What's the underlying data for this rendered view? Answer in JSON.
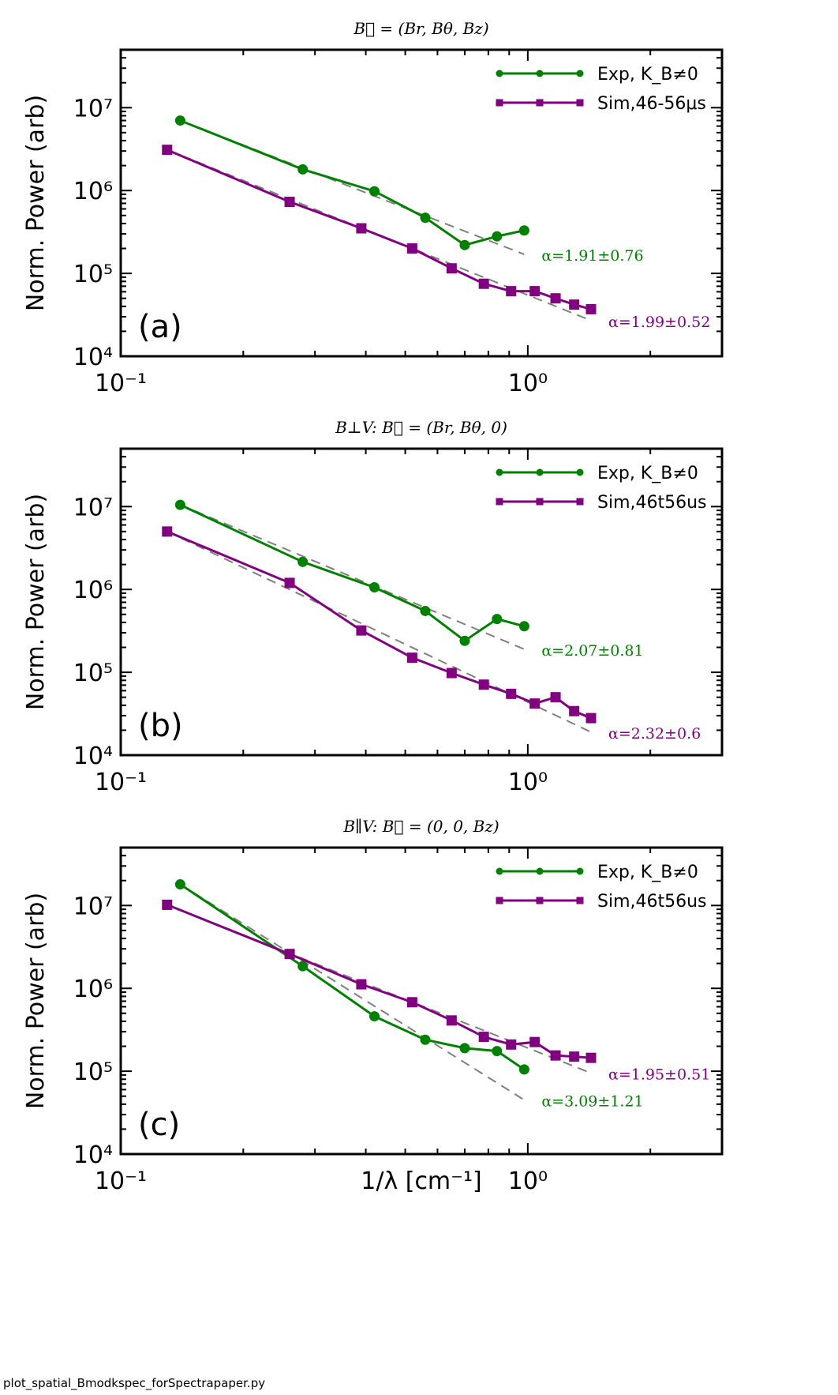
{
  "footer": "plot_spatial_Bmodkspec_forSpectrapaper.py",
  "colors": {
    "exp": "#008000",
    "sim": "#800080",
    "fit": "#808080"
  },
  "chart_data": [
    {
      "type": "line",
      "panel_label": "(a)",
      "title": "B⃗ = (Br, Bθ, Bz)",
      "xlabel": "",
      "ylabel": "Norm. Power (arb)",
      "xscale": "log",
      "yscale": "log",
      "xlim": [
        0.1,
        3.0
      ],
      "ylim": [
        10000,
        50000000
      ],
      "x_tick_labels": [
        "10⁻¹",
        "10⁰"
      ],
      "y_tick_labels": [
        "10⁴",
        "10⁵",
        "10⁶",
        "10⁷"
      ],
      "legend_position": "top-right",
      "series": [
        {
          "name": "Exp, K_B≠0",
          "color": "#008000",
          "marker": "circle",
          "x": [
            0.14,
            0.28,
            0.42,
            0.56,
            0.7,
            0.84,
            0.98
          ],
          "y": [
            7000000,
            1800000,
            980000,
            470000,
            220000,
            280000,
            330000
          ]
        },
        {
          "name": "Sim,46-56μs",
          "color": "#800080",
          "marker": "square",
          "x": [
            0.13,
            0.26,
            0.39,
            0.52,
            0.65,
            0.78,
            0.91,
            1.04,
            1.17,
            1.3,
            1.43
          ],
          "y": [
            3100000,
            730000,
            350000,
            200000,
            115000,
            75000,
            61000,
            61000,
            50000,
            42000,
            37000
          ]
        }
      ],
      "fits": [
        {
          "color": "#008000",
          "label": "α=1.91±0.76",
          "x": [
            0.14,
            0.98
          ],
          "y": [
            7000000,
            170000
          ]
        },
        {
          "color": "#800080",
          "label": "α=1.99±0.52",
          "x": [
            0.13,
            1.43
          ],
          "y": [
            3100000,
            27000
          ]
        }
      ]
    },
    {
      "type": "line",
      "panel_label": "(b)",
      "title": "B⊥V: B⃗ = (Br, Bθ, 0)",
      "xlabel": "",
      "ylabel": "Norm. Power (arb)",
      "xscale": "log",
      "yscale": "log",
      "xlim": [
        0.1,
        3.0
      ],
      "ylim": [
        10000,
        50000000
      ],
      "x_tick_labels": [
        "10⁻¹",
        "10⁰"
      ],
      "y_tick_labels": [
        "10⁴",
        "10⁵",
        "10⁶",
        "10⁷"
      ],
      "legend_position": "top-right",
      "series": [
        {
          "name": "Exp, K_B≠0",
          "color": "#008000",
          "marker": "circle",
          "x": [
            0.14,
            0.28,
            0.42,
            0.56,
            0.7,
            0.84,
            0.98
          ],
          "y": [
            10500000,
            2150000,
            1060000,
            550000,
            240000,
            440000,
            360000
          ]
        },
        {
          "name": "Sim,46t56us",
          "color": "#800080",
          "marker": "square",
          "x": [
            0.13,
            0.26,
            0.39,
            0.52,
            0.65,
            0.78,
            0.91,
            1.04,
            1.17,
            1.3,
            1.43
          ],
          "y": [
            5000000,
            1200000,
            320000,
            150000,
            98000,
            71000,
            55000,
            42000,
            50000,
            34000,
            28000
          ]
        }
      ],
      "fits": [
        {
          "color": "#008000",
          "label": "α=2.07±0.81",
          "x": [
            0.14,
            0.98
          ],
          "y": [
            10500000,
            190000
          ]
        },
        {
          "color": "#800080",
          "label": "α=2.32±0.6",
          "x": [
            0.13,
            1.43
          ],
          "y": [
            5000000,
            19000
          ]
        }
      ]
    },
    {
      "type": "line",
      "panel_label": "(c)",
      "title": "B∥V: B⃗ = (0, 0, Bz)",
      "xlabel": "1/λ [cm⁻¹]",
      "ylabel": "Norm. Power (arb)",
      "xscale": "log",
      "yscale": "log",
      "xlim": [
        0.1,
        3.0
      ],
      "ylim": [
        10000,
        50000000
      ],
      "x_tick_labels": [
        "10⁻¹",
        "10⁰"
      ],
      "y_tick_labels": [
        "10⁴",
        "10⁵",
        "10⁶",
        "10⁷"
      ],
      "legend_position": "top-right",
      "series": [
        {
          "name": "Exp, K_B≠0",
          "color": "#008000",
          "marker": "circle",
          "x": [
            0.14,
            0.28,
            0.42,
            0.56,
            0.7,
            0.84,
            0.98
          ],
          "y": [
            18000000,
            1850000,
            460000,
            240000,
            190000,
            175000,
            105000
          ]
        },
        {
          "name": "Sim,46t56us",
          "color": "#800080",
          "marker": "square",
          "x": [
            0.13,
            0.26,
            0.39,
            0.52,
            0.65,
            0.78,
            0.91,
            1.04,
            1.17,
            1.3,
            1.43
          ],
          "y": [
            10200000,
            2600000,
            1120000,
            680000,
            410000,
            260000,
            210000,
            225000,
            155000,
            150000,
            145000
          ]
        }
      ],
      "fits": [
        {
          "color": "#008000",
          "label": "α=3.09±1.21",
          "x": [
            0.14,
            0.98
          ],
          "y": [
            18000000,
            45000
          ]
        },
        {
          "color": "#800080",
          "label": "α=1.95±0.51",
          "x": [
            0.13,
            1.43
          ],
          "y": [
            10200000,
            95000
          ]
        }
      ]
    }
  ]
}
